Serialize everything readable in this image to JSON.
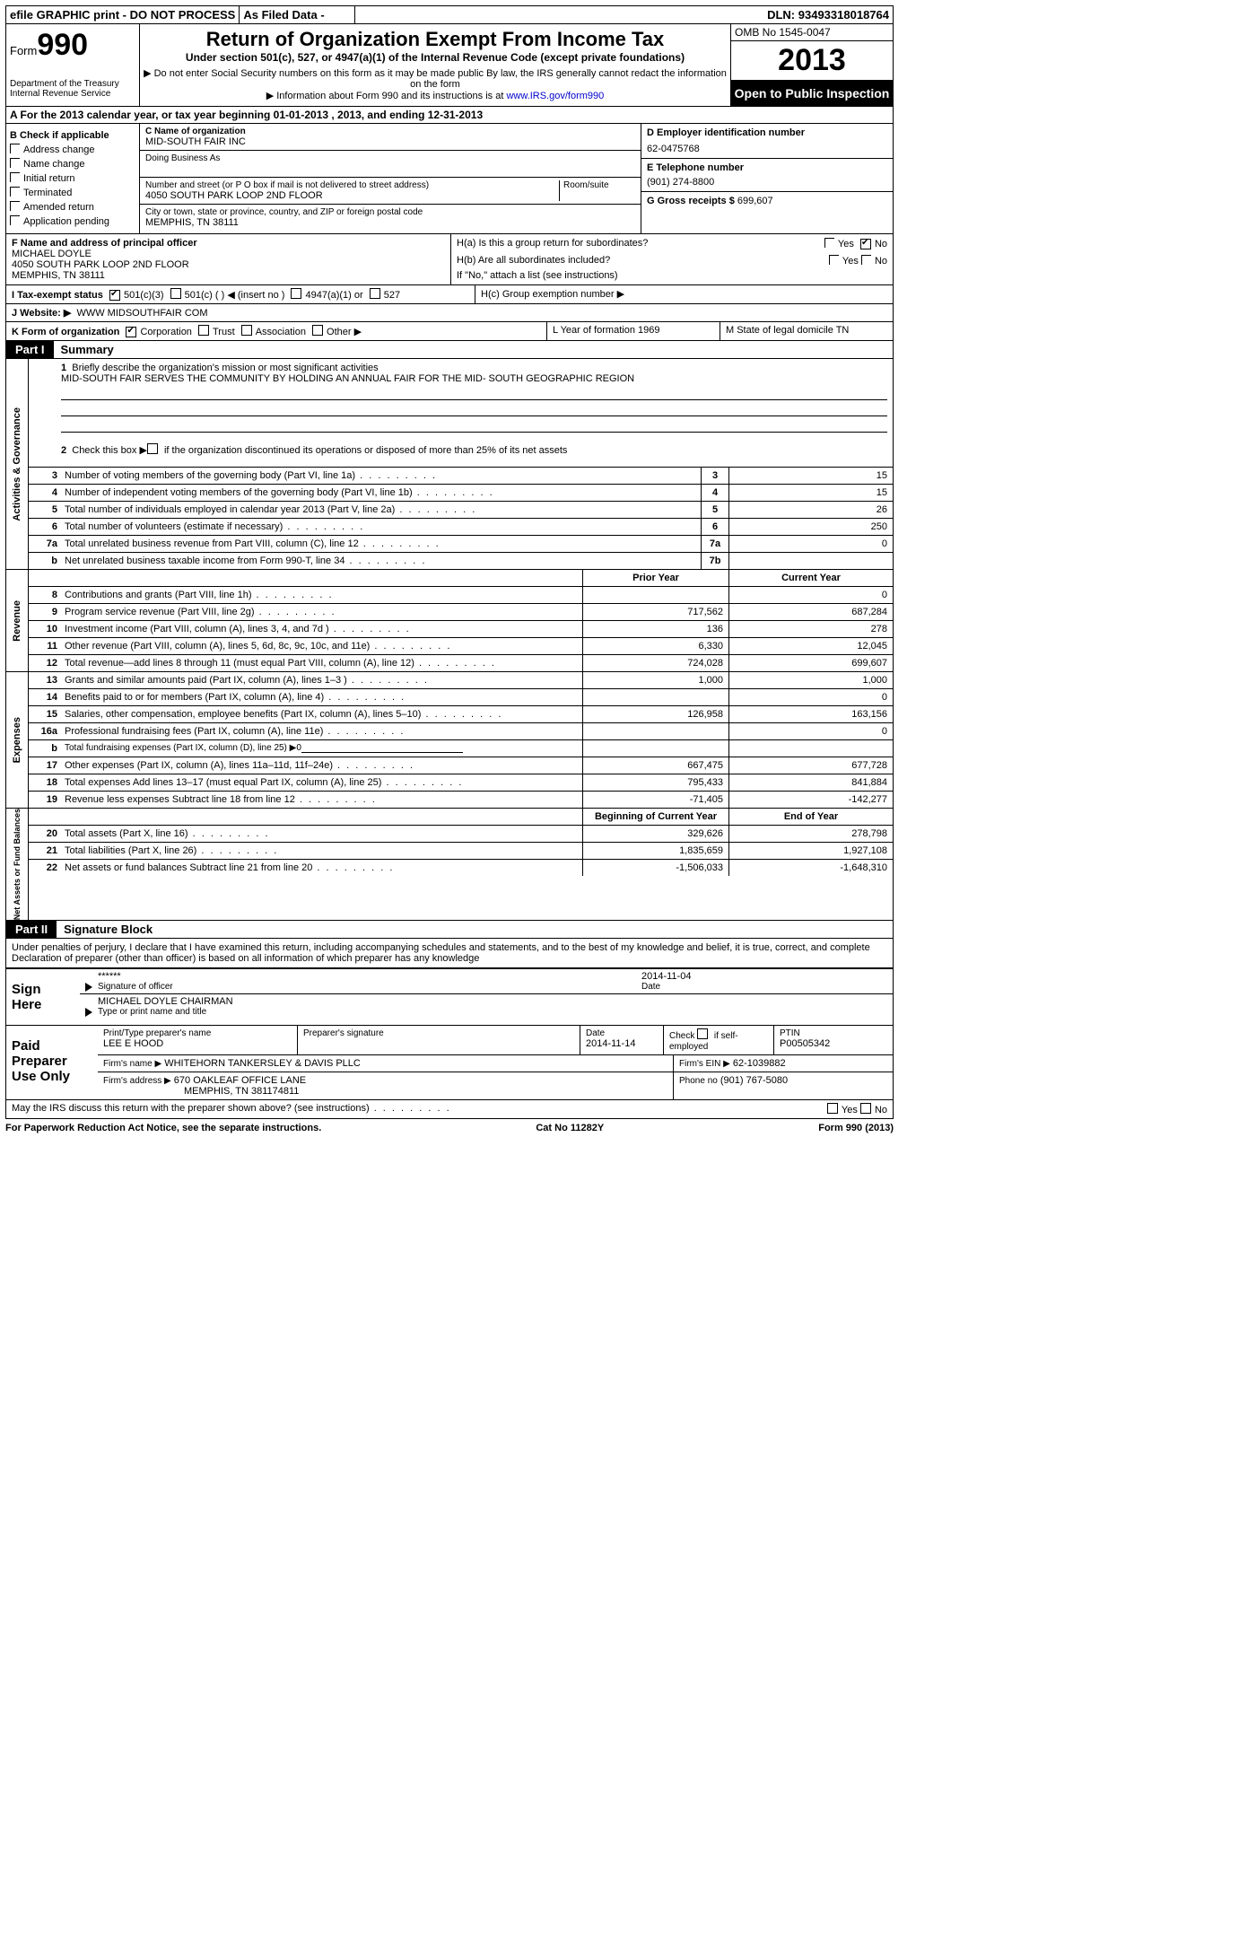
{
  "topbar": {
    "efile": "efile GRAPHIC print - DO NOT PROCESS",
    "asfiled": "As Filed Data -",
    "dln_label": "DLN:",
    "dln": "93493318018764"
  },
  "header": {
    "form_word": "Form",
    "form_no": "990",
    "dept": "Department of the Treasury\nInternal Revenue Service",
    "title": "Return of Organization Exempt From Income Tax",
    "sub1": "Under section 501(c), 527, or 4947(a)(1) of the Internal Revenue Code (except private foundations)",
    "sub2": "▶ Do not enter Social Security numbers on this form as it may be made public  By law, the IRS generally cannot redact the information on the form",
    "sub3_pre": "▶ Information about Form 990 and its instructions is at ",
    "sub3_link": "www.IRS.gov/form990",
    "omb": "OMB No  1545-0047",
    "year": "2013",
    "open": "Open to Public Inspection"
  },
  "rowA": "A  For the 2013 calendar year, or tax year beginning 01-01-2013     , 2013, and ending 12-31-2013",
  "boxB": {
    "title": "B  Check if applicable",
    "opts": [
      "Address change",
      "Name change",
      "Initial return",
      "Terminated",
      "Amended return",
      "Application pending"
    ]
  },
  "boxC": {
    "name_lbl": "C Name of organization",
    "name": "MID-SOUTH FAIR INC",
    "dba_lbl": "Doing Business As",
    "addr_lbl": "Number and street (or P O  box if mail is not delivered to street address)",
    "room_lbl": "Room/suite",
    "addr": "4050 SOUTH PARK LOOP 2ND FLOOR",
    "city_lbl": "City or town, state or province, country, and ZIP or foreign postal code",
    "city": "MEMPHIS, TN  38111"
  },
  "boxD": {
    "lbl": "D Employer identification number",
    "val": "62-0475768"
  },
  "boxE": {
    "lbl": "E Telephone number",
    "val": "(901) 274-8800"
  },
  "boxG": {
    "lbl": "G Gross receipts $",
    "val": "699,607"
  },
  "boxF": {
    "lbl": "F  Name and address of principal officer",
    "line1": "MICHAEL DOYLE",
    "line2": "4050 SOUTH PARK LOOP 2ND FLOOR",
    "line3": "MEMPHIS, TN  38111"
  },
  "boxH": {
    "ha": "H(a)  Is this a group return for subordinates?",
    "hb": "H(b)  Are all subordinates included?",
    "hnote": "If \"No,\" attach a list  (see instructions)",
    "hc": "H(c)   Group exemption number ▶"
  },
  "rowI": {
    "lbl": "I   Tax-exempt status",
    "o1": "501(c)(3)",
    "o2": "501(c) ( )",
    "o2t": "◀ (insert no )",
    "o3": "4947(a)(1) or",
    "o4": "527"
  },
  "rowJ": {
    "lbl": "J   Website: ▶",
    "val": "WWW MIDSOUTHFAIR COM"
  },
  "rowK": {
    "lbl": "K Form of organization",
    "o1": "Corporation",
    "o2": "Trust",
    "o3": "Association",
    "o4": "Other ▶",
    "yof": "L Year of formation  1969",
    "dom": "M State of legal domicile   TN"
  },
  "part1": {
    "tab": "Part I",
    "title": "Summary"
  },
  "summary": {
    "l1": "Briefly describe the organization's mission or most significant activities",
    "mission": "MID-SOUTH FAIR SERVES THE COMMUNITY BY HOLDING AN ANNUAL FAIR FOR THE MID- SOUTH GEOGRAPHIC REGION",
    "l2": "Check this box ▶      if the organization discontinued its operations or disposed of more than 25% of its net assets",
    "side1": "Activities & Governance",
    "side2": "Revenue",
    "side3": "Expenses",
    "side4": "Net Assets or Fund Balances",
    "rowsA": [
      {
        "n": "3",
        "t": "Number of voting members of the governing body (Part VI, line 1a)",
        "b": "3",
        "v": "15"
      },
      {
        "n": "4",
        "t": "Number of independent voting members of the governing body (Part VI, line 1b)",
        "b": "4",
        "v": "15"
      },
      {
        "n": "5",
        "t": "Total number of individuals employed in calendar year 2013 (Part V, line 2a)",
        "b": "5",
        "v": "26"
      },
      {
        "n": "6",
        "t": "Total number of volunteers (estimate if necessary)",
        "b": "6",
        "v": "250"
      },
      {
        "n": "7a",
        "t": "Total unrelated business revenue from Part VIII, column (C), line 12",
        "b": "7a",
        "v": "0"
      },
      {
        "n": "b",
        "t": "Net unrelated business taxable income from Form 990-T, line 34",
        "b": "7b",
        "v": ""
      }
    ],
    "hdr_prior": "Prior Year",
    "hdr_curr": "Current Year",
    "rowsR": [
      {
        "n": "8",
        "t": "Contributions and grants (Part VIII, line 1h)",
        "p": "",
        "c": "0"
      },
      {
        "n": "9",
        "t": "Program service revenue (Part VIII, line 2g)",
        "p": "717,562",
        "c": "687,284"
      },
      {
        "n": "10",
        "t": "Investment income (Part VIII, column (A), lines 3, 4, and 7d )",
        "p": "136",
        "c": "278"
      },
      {
        "n": "11",
        "t": "Other revenue (Part VIII, column (A), lines 5, 6d, 8c, 9c, 10c, and 11e)",
        "p": "6,330",
        "c": "12,045"
      },
      {
        "n": "12",
        "t": "Total revenue—add lines 8 through 11 (must equal Part VIII, column (A), line 12)",
        "p": "724,028",
        "c": "699,607"
      }
    ],
    "rowsE": [
      {
        "n": "13",
        "t": "Grants and similar amounts paid (Part IX, column (A), lines 1–3 )",
        "p": "1,000",
        "c": "1,000"
      },
      {
        "n": "14",
        "t": "Benefits paid to or for members (Part IX, column (A), line 4)",
        "p": "",
        "c": "0"
      },
      {
        "n": "15",
        "t": "Salaries, other compensation, employee benefits (Part IX, column (A), lines 5–10)",
        "p": "126,958",
        "c": "163,156"
      },
      {
        "n": "16a",
        "t": "Professional fundraising fees (Part IX, column (A), line 11e)",
        "p": "",
        "c": "0"
      },
      {
        "n": "b",
        "t": "Total fundraising expenses (Part IX, column (D), line 25)  ▶0",
        "p": "",
        "c": ""
      },
      {
        "n": "17",
        "t": "Other expenses (Part IX, column (A), lines 11a–11d, 11f–24e)",
        "p": "667,475",
        "c": "677,728"
      },
      {
        "n": "18",
        "t": "Total expenses  Add lines 13–17 (must equal Part IX, column (A), line 25)",
        "p": "795,433",
        "c": "841,884"
      },
      {
        "n": "19",
        "t": "Revenue less expenses  Subtract line 18 from line 12",
        "p": "-71,405",
        "c": "-142,277"
      }
    ],
    "hdr_beg": "Beginning of Current Year",
    "hdr_end": "End of Year",
    "rowsN": [
      {
        "n": "20",
        "t": "Total assets (Part X, line 16)",
        "p": "329,626",
        "c": "278,798"
      },
      {
        "n": "21",
        "t": "Total liabilities (Part X, line 26)",
        "p": "1,835,659",
        "c": "1,927,108"
      },
      {
        "n": "22",
        "t": "Net assets or fund balances  Subtract line 21 from line 20",
        "p": "-1,506,033",
        "c": "-1,648,310"
      }
    ]
  },
  "part2": {
    "tab": "Part II",
    "title": "Signature Block"
  },
  "sig": {
    "decl": "Under penalties of perjury, I declare that I have examined this return, including accompanying schedules and statements, and to the best of my knowledge and belief, it is true, correct, and complete  Declaration of preparer (other than officer) is based on all information of which preparer has any knowledge",
    "signhere": "Sign Here",
    "stars": "******",
    "sigoff_lbl": "Signature of officer",
    "date_lbl": "Date",
    "date1": "2014-11-04",
    "name": "MICHAEL DOYLE CHAIRMAN",
    "name_lbl": "Type or print name and title"
  },
  "prep": {
    "label": "Paid Preparer Use Only",
    "r1c1_lbl": "Print/Type preparer's name",
    "r1c1": "LEE E HOOD",
    "r1c2_lbl": "Preparer's signature",
    "r1c3_lbl": "Date",
    "r1c3": "2014-11-14",
    "r1c4_lbl": "Check        if self-employed",
    "r1c5_lbl": "PTIN",
    "r1c5": "P00505342",
    "r2_lbl": "Firm's name    ▶",
    "r2": "WHITEHORN TANKERSLEY & DAVIS PLLC",
    "r2b_lbl": "Firm's EIN ▶",
    "r2b": "62-1039882",
    "r3_lbl": "Firm's address ▶",
    "r3": "670 OAKLEAF OFFICE LANE",
    "r3b": "MEMPHIS, TN  381174811",
    "r3c_lbl": "Phone no",
    "r3c": "(901) 767-5080",
    "discuss": "May the IRS discuss this return with the preparer shown above? (see instructions)"
  },
  "foot": {
    "l": "For Paperwork Reduction Act Notice, see the separate instructions.",
    "m": "Cat  No  11282Y",
    "r": "Form 990 (2013)"
  },
  "yn": {
    "yes": "Yes",
    "no": "No"
  }
}
